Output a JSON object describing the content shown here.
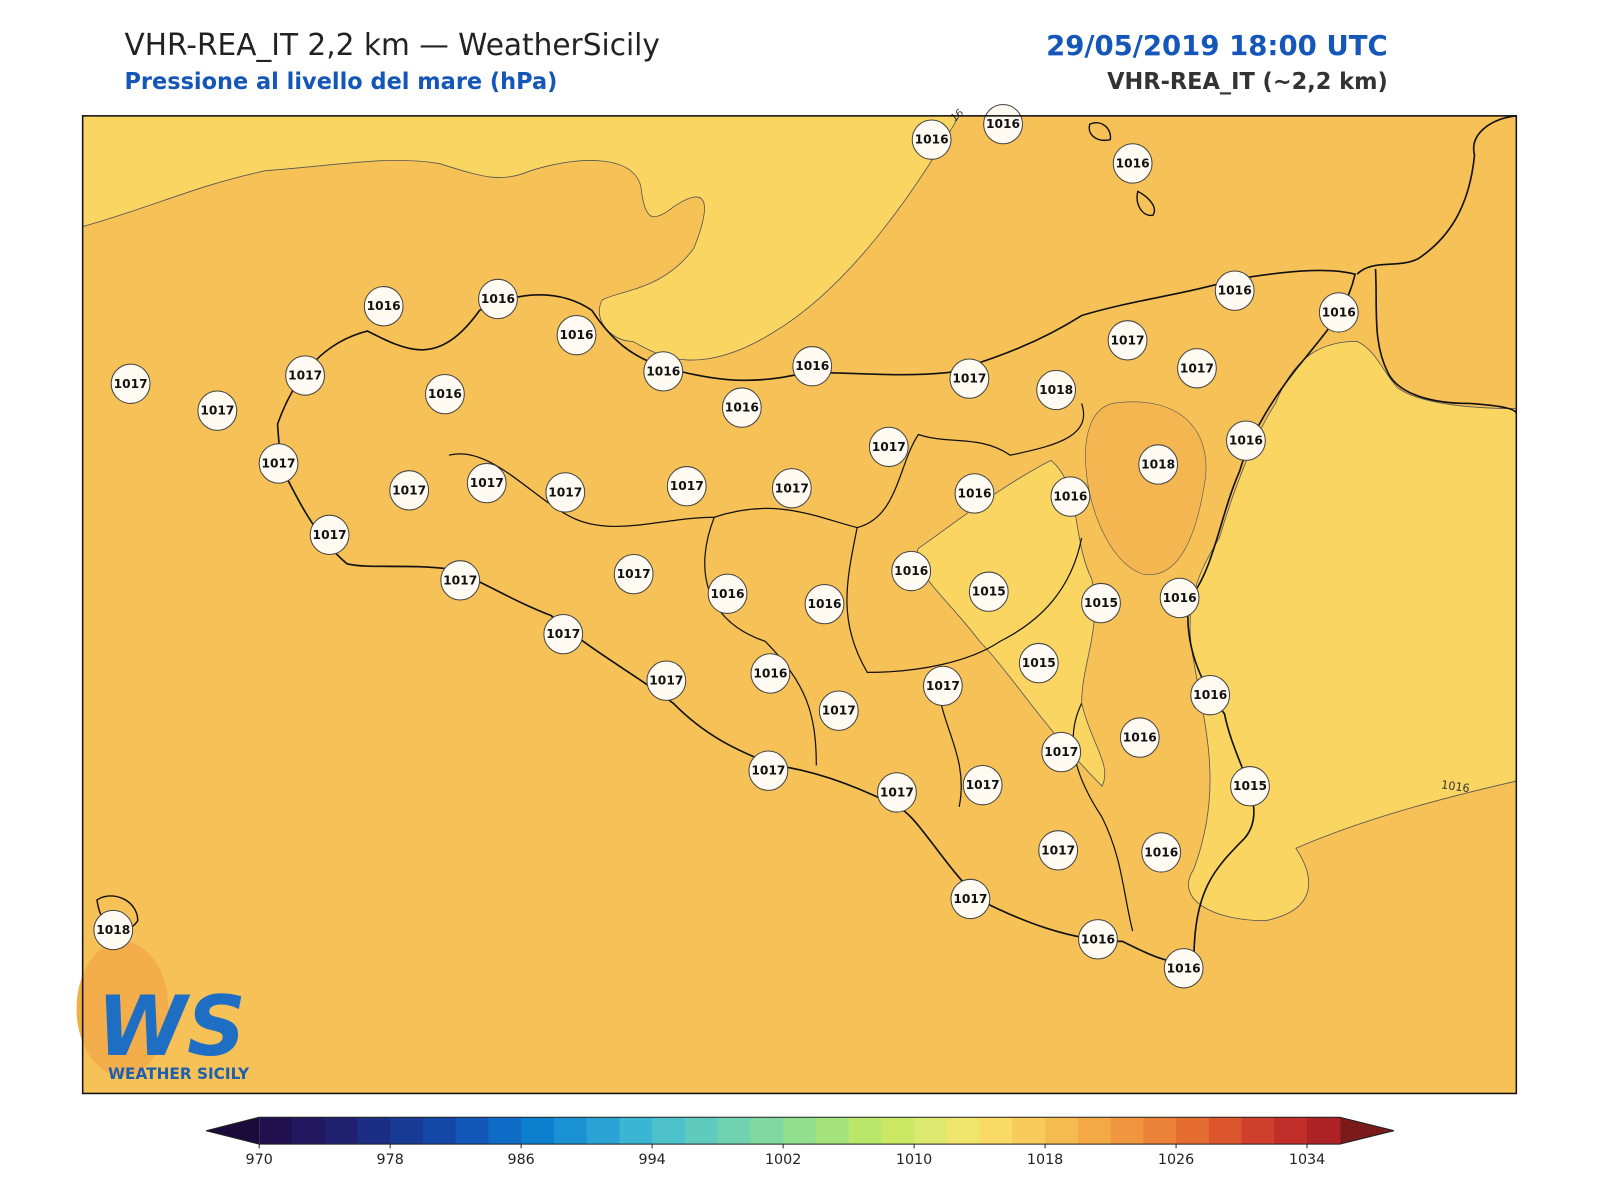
{
  "header": {
    "title": "VHR-REA_IT 2,2 km — WeatherSicily",
    "subtitle": "Pressione al livello del mare (hPa)",
    "datetime": "29/05/2019 18:00 UTC",
    "model": "VHR-REA_IT (~2,2 km)"
  },
  "map": {
    "stations": [
      1016,
      1016,
      1016,
      1016,
      1016,
      1016,
      1016,
      1016,
      1016,
      1016,
      1016,
      1017,
      1017,
      1017,
      1016,
      1017,
      1018,
      1017,
      1017,
      1017,
      1016,
      1018,
      1017,
      1017,
      1017,
      1017,
      1017,
      1017,
      1016,
      1016,
      1017,
      1017,
      1017,
      1016,
      1016,
      1016,
      1015,
      1015,
      1016,
      1017,
      1017,
      1016,
      1017,
      1017,
      1015,
      1016,
      1016,
      1017,
      1017,
      1017,
      1017,
      1015,
      1017,
      1016,
      1017,
      1018,
      1016,
      1016
    ],
    "contour_labels": [
      "16",
      "1016"
    ]
  },
  "logo": {
    "mark": "WS",
    "name": "WEATHER SICILY"
  },
  "colorbar": {
    "range": [
      970,
      1036
    ],
    "ticks": [
      970,
      978,
      986,
      994,
      1002,
      1010,
      1018,
      1026,
      1034
    ],
    "colors": [
      "#20104f",
      "#231760",
      "#1f2170",
      "#1c2d84",
      "#173b95",
      "#1347a6",
      "#1258b8",
      "#0e6cc6",
      "#0c7fcf",
      "#1a91d2",
      "#2aa3d4",
      "#3ab5d2",
      "#4dc2cb",
      "#5fcbbf",
      "#70d2b0",
      "#80d9a0",
      "#92df8e",
      "#a5e47c",
      "#b8e76a",
      "#cbe865",
      "#dde86e",
      "#f0e56c",
      "#f9da64",
      "#f8cb5a",
      "#f6bb50",
      "#f3a946",
      "#f0963e",
      "#ec8237",
      "#e56c31",
      "#dc552d",
      "#d03f2b",
      "#c12d29",
      "#ad2225"
    ],
    "under_color": "#1a0c3a",
    "over_color": "#7a1a1a"
  }
}
